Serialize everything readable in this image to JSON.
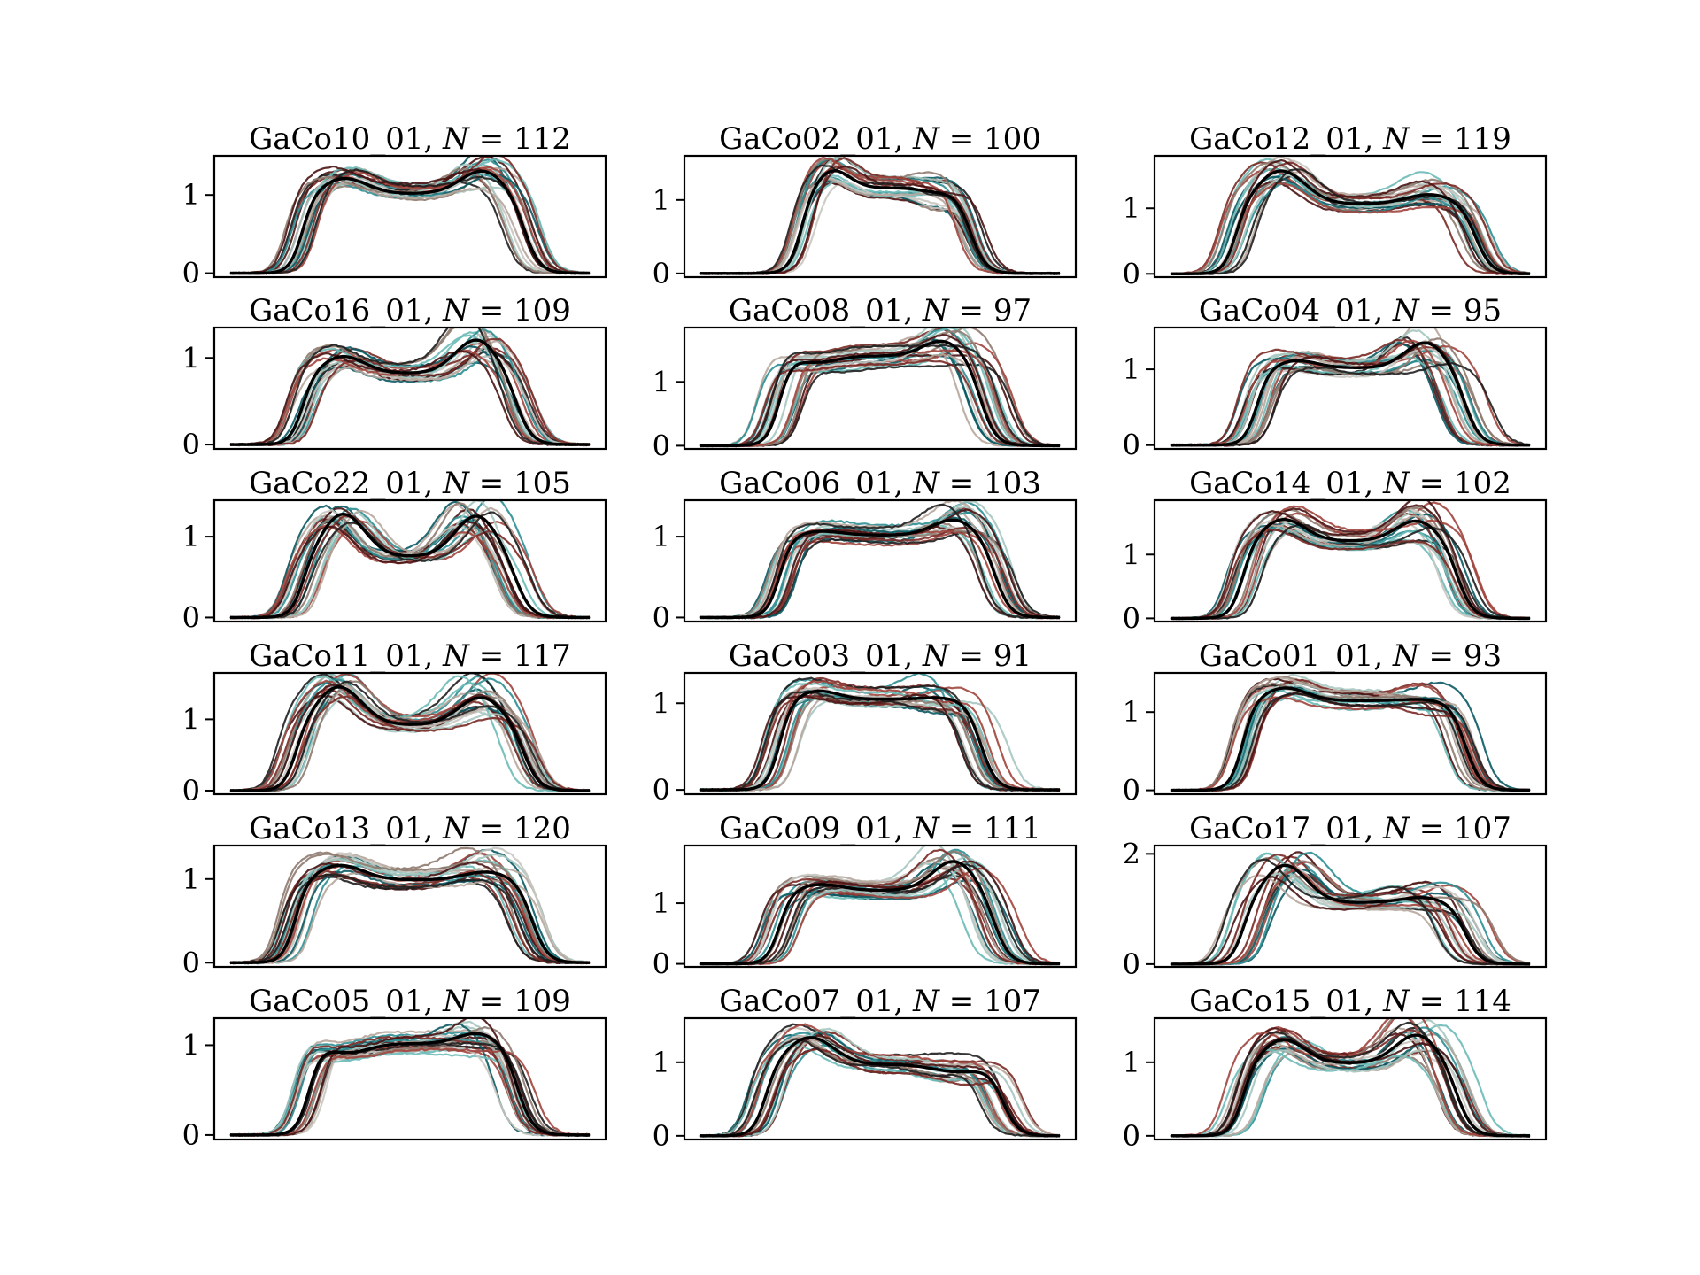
{
  "figure": {
    "series_palette": [
      "#0b5a63",
      "#2f8f94",
      "#6dbbb8",
      "#a6c6c0",
      "#c9c6c1",
      "#b7a79d",
      "#8f7b70",
      "#7a2a26",
      "#a0453d",
      "#4a1414",
      "#1f1f1f"
    ],
    "mean_color": "#000000"
  },
  "chart_data": [
    {
      "type": "line",
      "title_name": "GaCo10_01",
      "title_n": "112",
      "yticks": [
        0,
        1
      ],
      "ylim": [
        -0.05,
        1.5
      ],
      "peaks": [
        1.25,
        1.35
      ],
      "dip": 1.05,
      "rise": 0.2,
      "fall": 0.82,
      "spread": 0.07,
      "xtick_labels": []
    },
    {
      "type": "line",
      "title_name": "GaCo02_01",
      "title_n": "100",
      "yticks": [
        0,
        1
      ],
      "ylim": [
        -0.05,
        1.6
      ],
      "peaks": [
        1.45,
        1.15
      ],
      "dip": 1.2,
      "rise": 0.28,
      "fall": 0.75,
      "spread": 0.05,
      "xtick_labels": []
    },
    {
      "type": "line",
      "title_name": "GaCo12_01",
      "title_n": "119",
      "yticks": [
        0,
        1
      ],
      "ylim": [
        -0.05,
        1.8
      ],
      "peaks": [
        1.62,
        1.25
      ],
      "dip": 1.1,
      "rise": 0.18,
      "fall": 0.85,
      "spread": 0.08,
      "xtick_labels": []
    },
    {
      "type": "line",
      "title_name": "GaCo16_01",
      "title_n": "109",
      "yticks": [
        0,
        1
      ],
      "ylim": [
        -0.05,
        1.35
      ],
      "peaks": [
        1.05,
        1.25
      ],
      "dip": 0.85,
      "rise": 0.2,
      "fall": 0.8,
      "spread": 0.07,
      "xtick_labels": []
    },
    {
      "type": "line",
      "title_name": "GaCo08_01",
      "title_n": "97",
      "yticks": [
        0,
        1
      ],
      "ylim": [
        -0.05,
        1.85
      ],
      "peaks": [
        1.35,
        1.7
      ],
      "dip": 1.45,
      "rise": 0.22,
      "fall": 0.78,
      "spread": 0.1,
      "xtick_labels": []
    },
    {
      "type": "line",
      "title_name": "GaCo04_01",
      "title_n": "95",
      "yticks": [
        0,
        1
      ],
      "ylim": [
        -0.05,
        1.55
      ],
      "peaks": [
        1.15,
        1.4
      ],
      "dip": 1.05,
      "rise": 0.24,
      "fall": 0.82,
      "spread": 0.08,
      "xtick_labels": []
    },
    {
      "type": "line",
      "title_name": "GaCo22_01",
      "title_n": "105",
      "yticks": [
        0,
        1
      ],
      "ylim": [
        -0.05,
        1.45
      ],
      "peaks": [
        1.32,
        1.3
      ],
      "dip": 0.78,
      "rise": 0.2,
      "fall": 0.8,
      "spread": 0.08,
      "xtick_labels": []
    },
    {
      "type": "line",
      "title_name": "GaCo06_01",
      "title_n": "103",
      "yticks": [
        0,
        1
      ],
      "ylim": [
        -0.05,
        1.45
      ],
      "peaks": [
        1.1,
        1.25
      ],
      "dip": 1.05,
      "rise": 0.22,
      "fall": 0.82,
      "spread": 0.08,
      "xtick_labels": []
    },
    {
      "type": "line",
      "title_name": "GaCo14_01",
      "title_n": "102",
      "yticks": [
        0,
        1
      ],
      "ylim": [
        -0.05,
        1.85
      ],
      "peaks": [
        1.6,
        1.58
      ],
      "dip": 1.25,
      "rise": 0.2,
      "fall": 0.8,
      "spread": 0.07,
      "xtick_labels": []
    },
    {
      "type": "line",
      "title_name": "GaCo11_01",
      "title_n": "117",
      "yticks": [
        0,
        1
      ],
      "ylim": [
        -0.05,
        1.65
      ],
      "peaks": [
        1.5,
        1.35
      ],
      "dip": 0.95,
      "rise": 0.18,
      "fall": 0.82,
      "spread": 0.08,
      "xtick_labels": []
    },
    {
      "type": "line",
      "title_name": "GaCo03_01",
      "title_n": "91",
      "yticks": [
        0,
        1
      ],
      "ylim": [
        -0.05,
        1.35
      ],
      "peaks": [
        1.18,
        1.1
      ],
      "dip": 1.08,
      "rise": 0.22,
      "fall": 0.78,
      "spread": 0.08,
      "xtick_labels": []
    },
    {
      "type": "line",
      "title_name": "GaCo01_01",
      "title_n": "93",
      "yticks": [
        0,
        1
      ],
      "ylim": [
        -0.05,
        1.5
      ],
      "peaks": [
        1.35,
        1.2
      ],
      "dip": 1.18,
      "rise": 0.2,
      "fall": 0.82,
      "spread": 0.07,
      "xtick_labels": []
    },
    {
      "type": "line",
      "title_name": "GaCo13_01",
      "title_n": "120",
      "yticks": [
        0,
        1
      ],
      "ylim": [
        -0.05,
        1.4
      ],
      "peaks": [
        1.2,
        1.12
      ],
      "dip": 1.02,
      "rise": 0.18,
      "fall": 0.84,
      "spread": 0.07,
      "xtick_labels": []
    },
    {
      "type": "line",
      "title_name": "GaCo09_01",
      "title_n": "111",
      "yticks": [
        0,
        1
      ],
      "ylim": [
        -0.05,
        1.95
      ],
      "peaks": [
        1.35,
        1.75
      ],
      "dip": 1.25,
      "rise": 0.22,
      "fall": 0.82,
      "spread": 0.09,
      "xtick_labels": []
    },
    {
      "type": "line",
      "title_name": "GaCo17_01",
      "title_n": "107",
      "yticks": [
        0,
        2
      ],
      "ylim": [
        -0.05,
        2.15
      ],
      "peaks": [
        1.85,
        1.25
      ],
      "dip": 1.15,
      "rise": 0.2,
      "fall": 0.82,
      "spread": 0.1,
      "xtick_labels": []
    },
    {
      "type": "line",
      "title_name": "GaCo05_01",
      "title_n": "109",
      "yticks": [
        0,
        1
      ],
      "ylim": [
        -0.05,
        1.3
      ],
      "peaks": [
        0.95,
        1.17
      ],
      "dip": 1.05,
      "rise": 0.22,
      "fall": 0.8,
      "spread": 0.07,
      "xtick_labels": []
    },
    {
      "type": "line",
      "title_name": "GaCo07_01",
      "title_n": "107",
      "yticks": [
        0,
        1
      ],
      "ylim": [
        -0.05,
        1.6
      ],
      "peaks": [
        1.38,
        0.9
      ],
      "dip": 1.0,
      "rise": 0.18,
      "fall": 0.84,
      "spread": 0.08,
      "xtick_labels": []
    },
    {
      "type": "line",
      "title_name": "GaCo15_01",
      "title_n": "114",
      "yticks": [
        0,
        1
      ],
      "ylim": [
        -0.05,
        1.6
      ],
      "peaks": [
        1.35,
        1.42
      ],
      "dip": 1.02,
      "rise": 0.2,
      "fall": 0.8,
      "spread": 0.08,
      "xtick_labels": []
    }
  ]
}
